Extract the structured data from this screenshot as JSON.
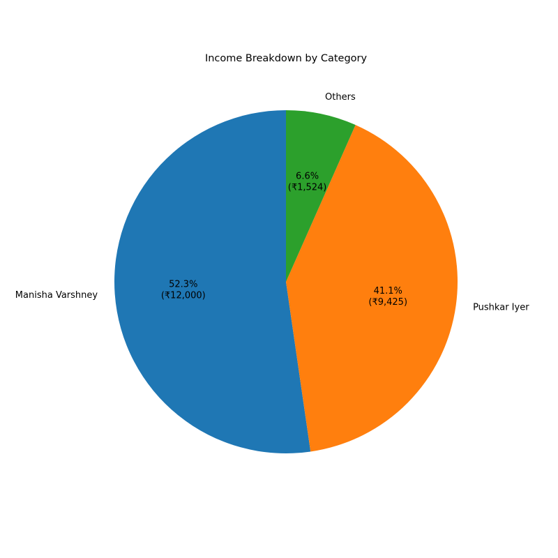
{
  "chart_data": {
    "type": "pie",
    "title": "Income Breakdown by Category",
    "start_angle_deg": 90,
    "direction": "clockwise",
    "slices": [
      {
        "label": "Manisha Varshney",
        "value": 12000,
        "percent": "52.3%",
        "amount": "(₹12,000)",
        "color": "#1f77b4"
      },
      {
        "label": "Pushkar Iyer",
        "value": 9425,
        "percent": "41.1%",
        "amount": "(₹9,425)",
        "color": "#ff7f0e"
      },
      {
        "label": "Others",
        "value": 1524,
        "percent": "6.6%",
        "amount": "(₹1,524)",
        "color": "#2ca02c"
      }
    ]
  }
}
